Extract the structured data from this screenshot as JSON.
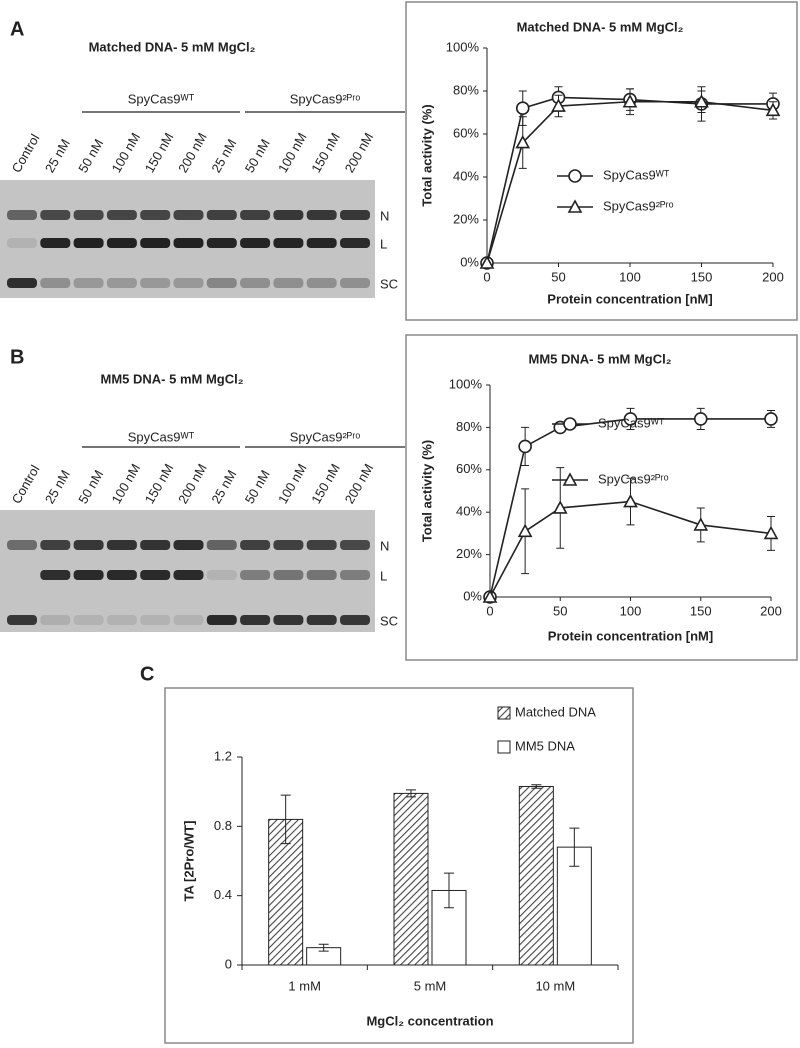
{
  "panel_labels": [
    "A",
    "B",
    "C"
  ],
  "gels": [
    {
      "title": "Matched DNA- 5 mM MgCl₂",
      "groups": [
        "SpyCas9ᵂᵀ",
        "SpyCas9²ᴾʳᵒ"
      ],
      "lanes": [
        "Control",
        "25 nM",
        "50 nM",
        "100 nM",
        "150 nM",
        "200 nM",
        "25 nM",
        "50 nM",
        "100 nM",
        "150 nM",
        "200 nM"
      ],
      "bands": [
        "N",
        "L",
        "SC"
      ]
    },
    {
      "title": "MM5 DNA- 5 mM MgCl₂",
      "groups": [
        "SpyCas9ᵂᵀ",
        "SpyCas9²ᴾʳᵒ"
      ],
      "lanes": [
        "Control",
        "25 nM",
        "50 nM",
        "100 nM",
        "150 nM",
        "200 nM",
        "25 nM",
        "50 nM",
        "100 nM",
        "150 nM",
        "200 nM"
      ],
      "bands": [
        "N",
        "L",
        "SC"
      ]
    }
  ],
  "chart_data": [
    {
      "type": "line",
      "title": "Matched DNA- 5 mM MgCl₂",
      "xlabel": "Protein concentration [nM]",
      "ylabel": "Total activity (%)",
      "x": [
        0,
        25,
        50,
        100,
        150,
        200
      ],
      "series": [
        {
          "name": "SpyCas9ᵂᵀ",
          "color": "#222222",
          "marker": "circle",
          "values": [
            0,
            72,
            77,
            76,
            74,
            74
          ],
          "errors": [
            0,
            8,
            5,
            5,
            8,
            5
          ]
        },
        {
          "name": "SpyCas9²ᴾʳᵒ",
          "color": "#222222",
          "marker": "triangle",
          "values": [
            0,
            56,
            73,
            75,
            75,
            71
          ],
          "errors": [
            0,
            12,
            5,
            6,
            5,
            4
          ]
        }
      ],
      "xlim": [
        0,
        200
      ],
      "ylim": [
        0,
        100
      ],
      "xticks": [
        0,
        50,
        100,
        150,
        200
      ],
      "yticks": [
        {
          "value": 0,
          "label": "0%"
        },
        {
          "value": 20,
          "label": "20%"
        },
        {
          "value": 40,
          "label": "40%"
        },
        {
          "value": 60,
          "label": "60%"
        },
        {
          "value": 80,
          "label": "80%"
        },
        {
          "value": 100,
          "label": "100%"
        }
      ]
    },
    {
      "type": "line",
      "title": "MM5 DNA- 5 mM MgCl₂",
      "xlabel": "Protein concentration [nM]",
      "ylabel": "Total activity (%)",
      "x": [
        0,
        25,
        50,
        100,
        150,
        200
      ],
      "series": [
        {
          "name": "SpyCas9ᵂᵀ",
          "color": "#222222",
          "marker": "circle",
          "values": [
            0,
            71,
            80,
            84,
            84,
            84
          ],
          "errors": [
            0,
            9,
            2,
            5,
            5,
            4
          ]
        },
        {
          "name": "SpyCas9²ᴾʳᵒ",
          "color": "#222222",
          "marker": "triangle",
          "values": [
            0,
            31,
            42,
            45,
            34,
            30
          ],
          "errors": [
            0,
            20,
            19,
            11,
            8,
            8
          ]
        }
      ],
      "xlim": [
        0,
        200
      ],
      "ylim": [
        0,
        100
      ],
      "xticks": [
        0,
        50,
        100,
        150,
        200
      ],
      "yticks": [
        {
          "value": 0,
          "label": "0%"
        },
        {
          "value": 20,
          "label": "20%"
        },
        {
          "value": 40,
          "label": "40%"
        },
        {
          "value": 60,
          "label": "60%"
        },
        {
          "value": 80,
          "label": "80%"
        },
        {
          "value": 100,
          "label": "100%"
        }
      ]
    },
    {
      "type": "bar",
      "xlabel": "MgCl₂ concentration",
      "ylabel": "TA [2Pro/WT]",
      "categories": [
        "1 mM",
        "5 mM",
        "10 mM"
      ],
      "series": [
        {
          "name": "Matched DNA",
          "color": "#444444",
          "hatch": true,
          "values": [
            0.84,
            0.99,
            1.03
          ],
          "errors": [
            0.14,
            0.02,
            0.01
          ]
        },
        {
          "name": "MM5 DNA",
          "color": "#ffffff",
          "hatch": false,
          "values": [
            0.1,
            0.43,
            0.68
          ],
          "errors": [
            0.02,
            0.1,
            0.11
          ]
        }
      ],
      "ylim": [
        0,
        1.2
      ],
      "yticks": [
        0,
        0.4,
        0.8,
        1.2
      ]
    }
  ]
}
